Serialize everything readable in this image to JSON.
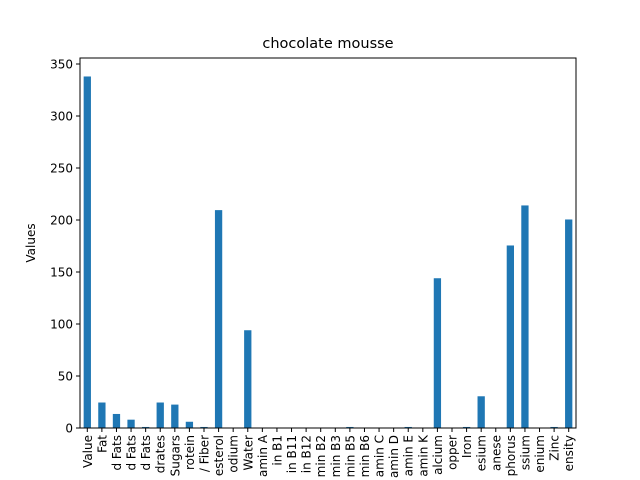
{
  "chart_data": {
    "type": "bar",
    "title": "chocolate mousse",
    "xlabel": "",
    "ylabel": "Values",
    "ylim": [
      0,
      350
    ],
    "yticks": [
      0,
      50,
      100,
      150,
      200,
      250,
      300,
      350
    ],
    "grid": false,
    "color": "#1f77b4",
    "categories": [
      "Value",
      "Fat",
      "d Fats",
      "d Fats",
      "d Fats",
      "drates",
      "Sugars",
      "rotein",
      "/ Fiber",
      "esterol",
      "odium",
      "Water",
      "amin A",
      "in B1",
      "in B11",
      "in B12",
      "min B2",
      "min B3",
      "min B5",
      "min B6",
      "amin C",
      "amin D",
      "amin E",
      "amin K",
      "alcium",
      "opper",
      "Iron",
      "esium",
      "anese",
      "phorus",
      "ssium",
      "enium",
      "Zinc",
      "ensity"
    ],
    "values": [
      338,
      24.5,
      13.5,
      8,
      1,
      24.5,
      22.5,
      6,
      1,
      209.5,
      0,
      94,
      0,
      0,
      0,
      0,
      0,
      0,
      1,
      0,
      0,
      0,
      1,
      0,
      144,
      0,
      1,
      30.5,
      0,
      175.5,
      214,
      0,
      1,
      200.5
    ]
  }
}
